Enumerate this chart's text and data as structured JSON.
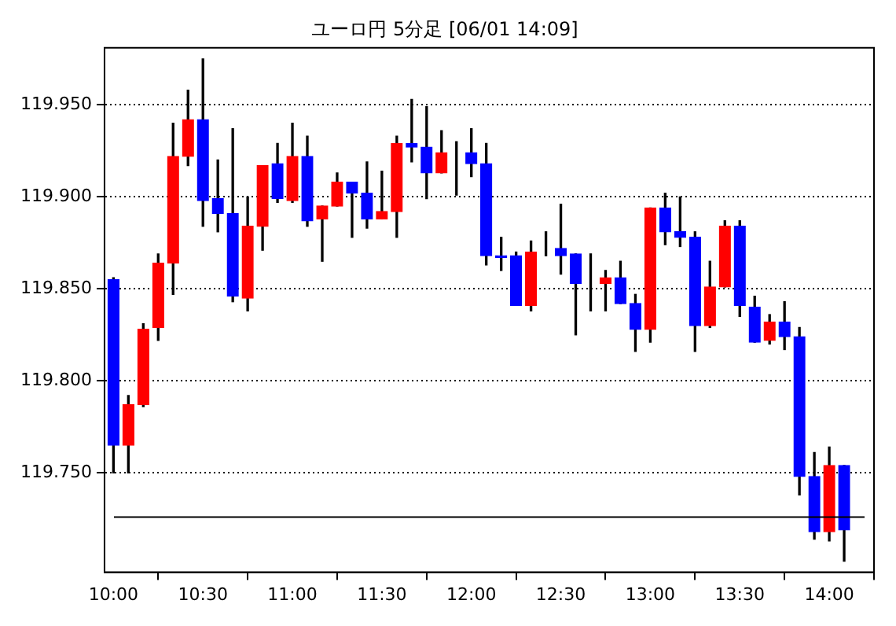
{
  "chart_data": {
    "type": "candlestick",
    "title": "ユーロ円 5分足 [06/01 14:09]",
    "x": [
      10,
      10.0833,
      10.1667,
      10.25,
      10.3333,
      10.4167,
      10.5,
      10.5833,
      10.6667,
      10.75,
      10.8333,
      10.9167,
      11,
      11.0833,
      11.1667,
      11.25,
      11.3333,
      11.4167,
      11.5,
      11.5833,
      11.6667,
      11.75,
      11.8333,
      11.9167,
      12,
      12.0833,
      12.1667,
      12.25,
      12.3333,
      12.4167,
      12.5,
      12.5833,
      12.6667,
      12.75,
      12.8333,
      12.9167,
      13,
      13.0833,
      13.1667,
      13.25,
      13.3333,
      13.4167,
      13.5,
      13.5833,
      13.6667,
      13.75,
      13.8333,
      13.9167,
      14,
      14.0833
    ],
    "ohlc": [
      [
        119.855,
        119.856,
        119.75,
        119.765
      ],
      [
        119.765,
        119.792,
        119.75,
        119.787
      ],
      [
        119.787,
        119.831,
        119.786,
        119.828
      ],
      [
        119.829,
        119.869,
        119.822,
        119.864
      ],
      [
        119.864,
        119.94,
        119.847,
        119.922
      ],
      [
        119.922,
        119.958,
        119.917,
        119.942
      ],
      [
        119.942,
        119.975,
        119.884,
        119.898
      ],
      [
        119.899,
        119.92,
        119.881,
        119.891
      ],
      [
        119.891,
        119.937,
        119.843,
        119.846
      ],
      [
        119.845,
        119.9,
        119.838,
        119.884
      ],
      [
        119.884,
        119.917,
        119.871,
        119.917
      ],
      [
        119.918,
        119.929,
        119.897,
        119.899
      ],
      [
        119.898,
        119.94,
        119.897,
        119.922
      ],
      [
        119.922,
        119.933,
        119.884,
        119.887
      ],
      [
        119.888,
        119.895,
        119.865,
        119.895
      ],
      [
        119.895,
        119.913,
        119.895,
        119.908
      ],
      [
        119.908,
        119.908,
        119.878,
        119.902
      ],
      [
        119.902,
        119.919,
        119.883,
        119.888
      ],
      [
        119.888,
        119.914,
        119.888,
        119.892
      ],
      [
        119.892,
        119.933,
        119.878,
        119.929
      ],
      [
        119.929,
        119.953,
        119.919,
        119.927
      ],
      [
        119.927,
        119.949,
        119.899,
        119.913
      ],
      [
        119.913,
        119.936,
        119.913,
        119.924
      ],
      [
        119.924,
        119.93,
        119.901,
        119.924
      ],
      [
        119.924,
        119.937,
        119.911,
        119.918
      ],
      [
        119.918,
        119.929,
        119.863,
        119.868
      ],
      [
        119.868,
        119.878,
        119.86,
        119.867
      ],
      [
        119.868,
        119.87,
        119.841,
        119.841
      ],
      [
        119.841,
        119.876,
        119.838,
        119.87
      ],
      [
        119.872,
        119.881,
        119.868,
        119.872
      ],
      [
        119.872,
        119.896,
        119.858,
        119.868
      ],
      [
        119.869,
        119.869,
        119.825,
        119.853
      ],
      [
        119.853,
        119.869,
        119.838,
        119.853
      ],
      [
        119.853,
        119.86,
        119.838,
        119.856
      ],
      [
        119.856,
        119.865,
        119.842,
        119.842
      ],
      [
        119.842,
        119.847,
        119.816,
        119.828
      ],
      [
        119.828,
        119.894,
        119.821,
        119.894
      ],
      [
        119.894,
        119.902,
        119.874,
        119.881
      ],
      [
        119.881,
        119.9,
        119.873,
        119.878
      ],
      [
        119.878,
        119.881,
        119.816,
        119.83
      ],
      [
        119.83,
        119.865,
        119.829,
        119.851
      ],
      [
        119.851,
        119.887,
        119.851,
        119.884
      ],
      [
        119.884,
        119.887,
        119.835,
        119.841
      ],
      [
        119.84,
        119.846,
        119.821,
        119.821
      ],
      [
        119.822,
        119.836,
        119.82,
        119.832
      ],
      [
        119.832,
        119.843,
        119.817,
        119.824
      ],
      [
        119.824,
        119.829,
        119.738,
        119.748
      ],
      [
        119.748,
        119.761,
        119.714,
        119.718
      ],
      [
        119.718,
        119.764,
        119.713,
        119.754
      ],
      [
        119.754,
        119.754,
        119.702,
        119.719
      ]
    ],
    "colors": [
      "#0000ff",
      "#ff0000",
      "#ff0000",
      "#ff0000",
      "#ff0000",
      "#ff0000",
      "#0000ff",
      "#0000ff",
      "#0000ff",
      "#ff0000",
      "#ff0000",
      "#0000ff",
      "#ff0000",
      "#0000ff",
      "#ff0000",
      "#ff0000",
      "#0000ff",
      "#0000ff",
      "#ff0000",
      "#ff0000",
      "#0000ff",
      "#0000ff",
      "#ff0000",
      "#0000ff",
      "#0000ff",
      "#0000ff",
      "#0000ff",
      "#0000ff",
      "#ff0000",
      "#0000ff",
      "#0000ff",
      "#0000ff",
      "#0000ff",
      "#ff0000",
      "#0000ff",
      "#0000ff",
      "#ff0000",
      "#0000ff",
      "#0000ff",
      "#0000ff",
      "#ff0000",
      "#ff0000",
      "#0000ff",
      "#0000ff",
      "#ff0000",
      "#0000ff",
      "#0000ff",
      "#0000ff",
      "#ff0000",
      "#0000ff"
    ],
    "xlim": [
      9.95,
      14.25
    ],
    "xticks": [
      {
        "value": 10,
        "label": "10:00"
      },
      {
        "value": 10.5,
        "label": "10:30"
      },
      {
        "value": 11,
        "label": "11:00"
      },
      {
        "value": 11.5,
        "label": "11:30"
      },
      {
        "value": 12,
        "label": "12:00"
      },
      {
        "value": 12.5,
        "label": "12:30"
      },
      {
        "value": 13,
        "label": "13:00"
      },
      {
        "value": 13.5,
        "label": "13:30"
      },
      {
        "value": 14,
        "label": "14:00"
      }
    ],
    "ylim": [
      119.696,
      119.981
    ],
    "yticks": [
      {
        "value": 119.75,
        "label": "119.750"
      },
      {
        "value": 119.8,
        "label": "119.800"
      },
      {
        "value": 119.85,
        "label": "119.850"
      },
      {
        "value": 119.9,
        "label": "119.900"
      },
      {
        "value": 119.95,
        "label": "119.950"
      }
    ],
    "grid": "y",
    "ref_lines": [
      {
        "axis": "y",
        "value": 119.726,
        "color": "#000000",
        "line_style": "solid"
      }
    ]
  }
}
